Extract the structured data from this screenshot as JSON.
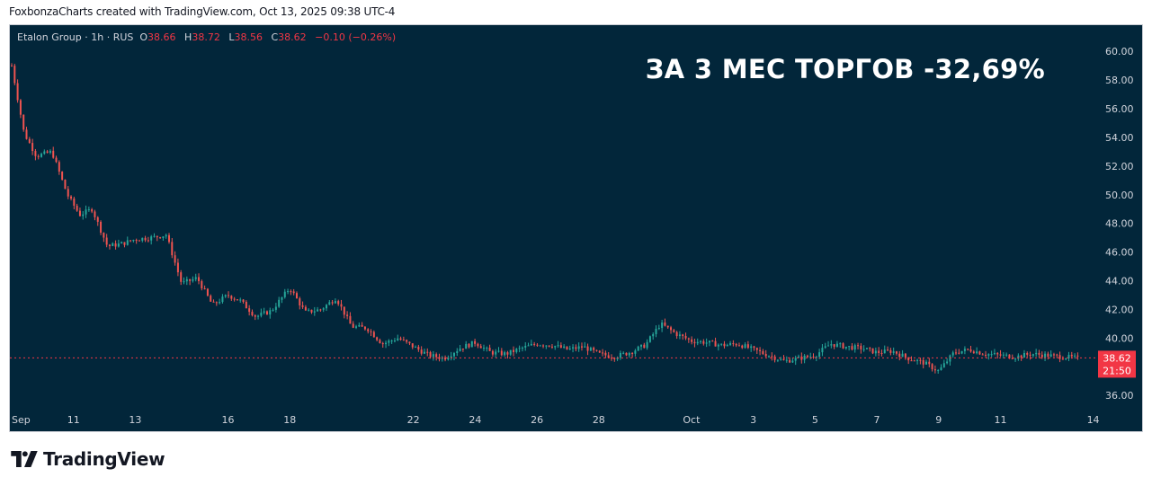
{
  "header": {
    "credit": "FoxbonzaCharts created with TradingView.com, Oct 13, 2025 09:38 UTC-4"
  },
  "legend": {
    "symbol": "Etalon Group · 1h · RUS",
    "open_label": "O",
    "open": "38.66",
    "high_label": "H",
    "high": "38.72",
    "low_label": "L",
    "low": "38.56",
    "close_label": "C",
    "close": "38.62",
    "change": "−0.10 (−0.26%)"
  },
  "headline": "ЗА 3 МЕС ТОРГОВ -32,69%",
  "price_tag": {
    "price": "38.62",
    "countdown": "21:50"
  },
  "brand": {
    "name": "TradingView"
  },
  "colors": {
    "background": "#02263a",
    "up": "#26a69a",
    "down": "#ef5350",
    "axis_text": "#d1d4dc",
    "price_line": "#f23645"
  },
  "chart_data": {
    "type": "candlestick",
    "title": "",
    "xlabel": "",
    "ylabel": "",
    "ylim": [
      35.2,
      61.2
    ],
    "y_ticks": [
      "60.00",
      "58.00",
      "56.00",
      "54.00",
      "52.00",
      "50.00",
      "48.00",
      "46.00",
      "44.00",
      "42.00",
      "40.00",
      "38.00",
      "36.00"
    ],
    "x_ticks": [
      {
        "label": "Sep",
        "day": 9
      },
      {
        "label": "11",
        "day": 11
      },
      {
        "label": "13",
        "day": 13
      },
      {
        "label": "16",
        "day": 16
      },
      {
        "label": "18",
        "day": 18
      },
      {
        "label": "22",
        "day": 22
      },
      {
        "label": "24",
        "day": 24
      },
      {
        "label": "26",
        "day": 26
      },
      {
        "label": "28",
        "day": 28
      },
      {
        "label": "Oct",
        "day": 31
      },
      {
        "label": "3",
        "day": 33
      },
      {
        "label": "5",
        "day": 35
      },
      {
        "label": "7",
        "day": 37
      },
      {
        "label": "9",
        "day": 39
      },
      {
        "label": "11",
        "day": 41
      },
      {
        "label": "14",
        "day": 44
      }
    ],
    "x_range": [
      9,
      44.1
    ],
    "series": [
      {
        "name": "Etalon Group",
        "day": [
          9.0,
          9.4,
          9.8,
          10.3,
          10.8,
          11.2,
          11.6,
          12.1,
          12.6,
          13.0,
          13.5,
          14.0,
          14.5,
          15.0,
          15.5,
          16.0,
          16.4,
          16.9,
          17.4,
          18.0,
          18.5,
          19.0,
          19.5,
          20.0,
          20.5,
          21.0,
          21.5,
          22.0,
          22.5,
          23.0,
          23.5,
          24.0,
          24.5,
          25.0,
          25.5,
          26.0,
          26.5,
          27.0,
          27.5,
          28.0,
          28.5,
          29.0,
          29.5,
          30.0,
          30.5,
          31.0,
          31.5,
          32.0,
          32.5,
          33.0,
          33.5,
          34.0,
          34.5,
          35.0,
          35.5,
          36.0,
          36.5,
          37.0,
          37.5,
          38.0,
          38.5,
          39.0,
          39.5,
          40.0,
          40.5,
          41.0,
          41.5,
          42.0,
          42.5,
          43.0,
          43.5
        ],
        "close": [
          59.0,
          54.3,
          52.7,
          53.0,
          50.0,
          48.6,
          49.0,
          46.4,
          46.6,
          46.9,
          47.0,
          47.2,
          43.8,
          44.2,
          42.3,
          43.0,
          42.6,
          41.5,
          41.9,
          43.5,
          41.8,
          42.0,
          42.8,
          40.8,
          40.7,
          39.6,
          40.0,
          39.4,
          38.8,
          38.6,
          39.3,
          39.7,
          39.0,
          38.9,
          39.3,
          39.6,
          39.5,
          39.2,
          39.4,
          38.9,
          38.7,
          39.0,
          39.5,
          41.0,
          40.3,
          39.8,
          39.7,
          39.5,
          39.6,
          39.2,
          38.8,
          38.4,
          38.6,
          38.8,
          39.6,
          39.4,
          39.3,
          39.0,
          39.1,
          38.6,
          38.3,
          37.7,
          39.0,
          39.2,
          38.9,
          38.8,
          38.7,
          38.9,
          38.8,
          38.7,
          38.62
        ]
      }
    ]
  }
}
